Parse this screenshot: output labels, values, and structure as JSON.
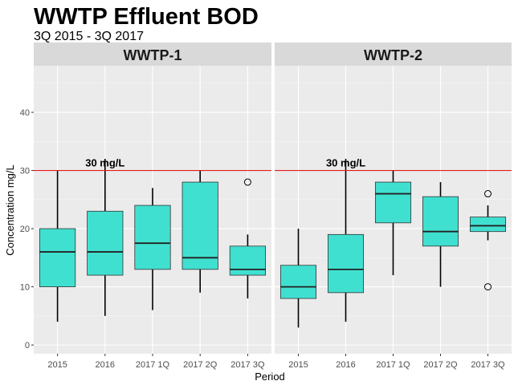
{
  "chart_data": {
    "type": "box",
    "title": "WWTP Effluent BOD",
    "subtitle": "3Q 2015 - 3Q 2017",
    "xlabel": "Period",
    "ylabel": "Concentration mg/L",
    "ylim": [
      -1.5,
      48
    ],
    "yticks": [
      0,
      10,
      20,
      30,
      40
    ],
    "categories": [
      "2015",
      "2016",
      "2017 1Q",
      "2017 2Q",
      "2017 3Q"
    ],
    "fill_color": "#40E0D0",
    "reference_line": {
      "value": 30,
      "label": "30 mg/L",
      "color": "#E41A1C"
    },
    "facets": [
      {
        "name": "WWTP-1",
        "boxes": [
          {
            "category": "2015",
            "min": 4,
            "q1": 10,
            "median": 16,
            "q3": 20,
            "max": 30,
            "outliers": []
          },
          {
            "category": "2016",
            "min": 5,
            "q1": 12,
            "median": 16,
            "q3": 23,
            "max": 32,
            "outliers": []
          },
          {
            "category": "2017 1Q",
            "min": 6,
            "q1": 13,
            "median": 17.5,
            "q3": 24,
            "max": 27,
            "outliers": []
          },
          {
            "category": "2017 2Q",
            "min": 9,
            "q1": 13,
            "median": 15,
            "q3": 28,
            "max": 30,
            "outliers": []
          },
          {
            "category": "2017 3Q",
            "min": 8,
            "q1": 12,
            "median": 13,
            "q3": 17,
            "max": 19,
            "outliers": [
              28
            ]
          }
        ]
      },
      {
        "name": "WWTP-2",
        "boxes": [
          {
            "category": "2015",
            "min": 3,
            "q1": 8,
            "median": 10,
            "q3": 13.7,
            "max": 20,
            "outliers": []
          },
          {
            "category": "2016",
            "min": 4,
            "q1": 9,
            "median": 13,
            "q3": 19,
            "max": 32,
            "outliers": []
          },
          {
            "category": "2017 1Q",
            "min": 12,
            "q1": 21,
            "median": 26,
            "q3": 28,
            "max": 30,
            "outliers": []
          },
          {
            "category": "2017 2Q",
            "min": 10,
            "q1": 17,
            "median": 19.5,
            "q3": 25.5,
            "max": 28,
            "outliers": []
          },
          {
            "category": "2017 3Q",
            "min": 18,
            "q1": 19.5,
            "median": 20.5,
            "q3": 22,
            "max": 24,
            "outliers": [
              26,
              10
            ]
          }
        ]
      }
    ]
  }
}
